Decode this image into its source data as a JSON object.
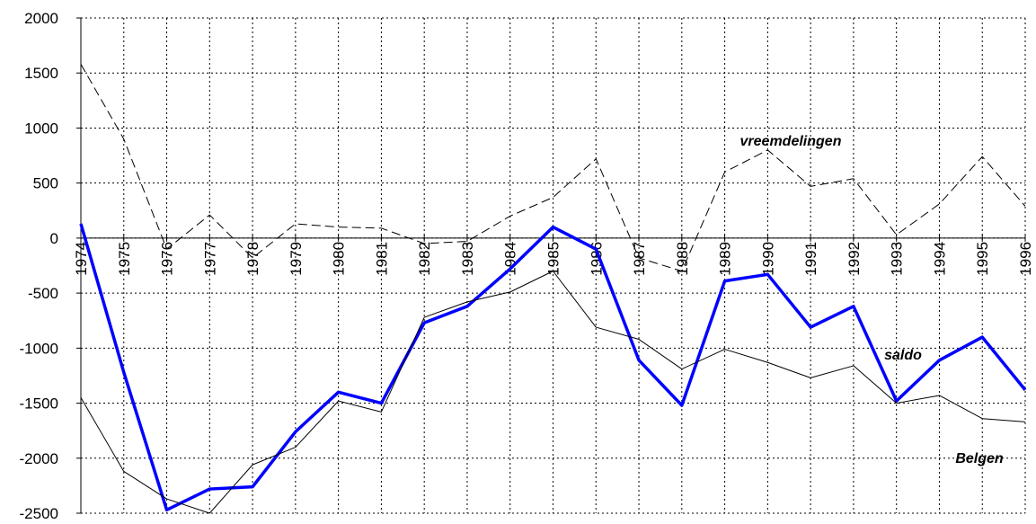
{
  "chart_data": {
    "type": "line",
    "categories": [
      "1974",
      "1975",
      "1976",
      "1977",
      "1978",
      "1979",
      "1980",
      "1981",
      "1982",
      "1983",
      "1984",
      "1985",
      "1986",
      "1987",
      "1988",
      "1989",
      "1990",
      "1991",
      "1992",
      "1993",
      "1994",
      "1995",
      "1996"
    ],
    "series": [
      {
        "name": "vreemdelingen",
        "color": "#000000",
        "style": "dashed",
        "width": 1,
        "values": [
          1580,
          900,
          -100,
          210,
          -180,
          130,
          100,
          90,
          -50,
          -30,
          200,
          370,
          720,
          -180,
          -300,
          600,
          800,
          470,
          540,
          30,
          310,
          740,
          290
        ]
      },
      {
        "name": "saldo",
        "color": "#0000ff",
        "style": "solid",
        "width": 3.5,
        "values": [
          130,
          -1220,
          -2470,
          -2280,
          -2260,
          -1760,
          -1400,
          -1500,
          -770,
          -620,
          -280,
          100,
          -100,
          -1110,
          -1520,
          -390,
          -330,
          -810,
          -620,
          -1480,
          -1110,
          -900,
          -1380
        ]
      },
      {
        "name": "Belgen",
        "color": "#000000",
        "style": "solid",
        "width": 1,
        "values": [
          -1450,
          -2120,
          -2370,
          -2500,
          -2060,
          -1900,
          -1480,
          -1580,
          -720,
          -580,
          -490,
          -300,
          -810,
          -920,
          -1190,
          -1010,
          -1130,
          -1270,
          -1160,
          -1500,
          -1430,
          -1640,
          -1670
        ]
      }
    ],
    "ylim": [
      -2500,
      2000
    ],
    "yticks": [
      -2500,
      -2000,
      -1500,
      -1000,
      -500,
      0,
      500,
      1000,
      1500,
      2000
    ],
    "grid": true
  }
}
